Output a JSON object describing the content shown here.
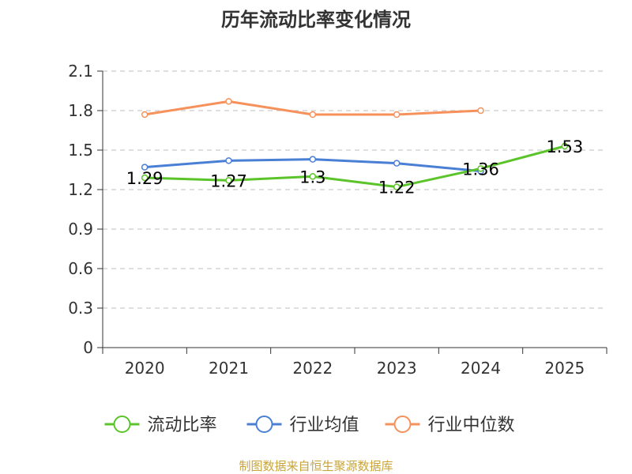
{
  "chart_data": {
    "type": "line",
    "title": "历年流动比率变化情况",
    "categories": [
      "2020",
      "2021",
      "2022",
      "2023",
      "2024",
      "2025"
    ],
    "y_ticks": [
      "0",
      "0.3",
      "0.6",
      "0.9",
      "1.2",
      "1.5",
      "1.8",
      "2.1"
    ],
    "ylim": [
      0,
      2.1
    ],
    "grid": true,
    "legend_position": "bottom",
    "series": [
      {
        "name": "流动比率",
        "color": "#5cc42b",
        "values": [
          1.29,
          1.27,
          1.3,
          1.22,
          1.36,
          1.53
        ],
        "labels": [
          "1.29",
          "1.27",
          "1.3",
          "1.22",
          "1.36",
          "1.53"
        ]
      },
      {
        "name": "行业均值",
        "color": "#4a7fd6",
        "values": [
          1.37,
          1.42,
          1.43,
          1.4,
          1.34,
          null
        ]
      },
      {
        "name": "行业中位数",
        "color": "#f7915b",
        "values": [
          1.77,
          1.87,
          1.77,
          1.77,
          1.8,
          null
        ]
      }
    ],
    "source": "制图数据来自恒生聚源数据库"
  }
}
